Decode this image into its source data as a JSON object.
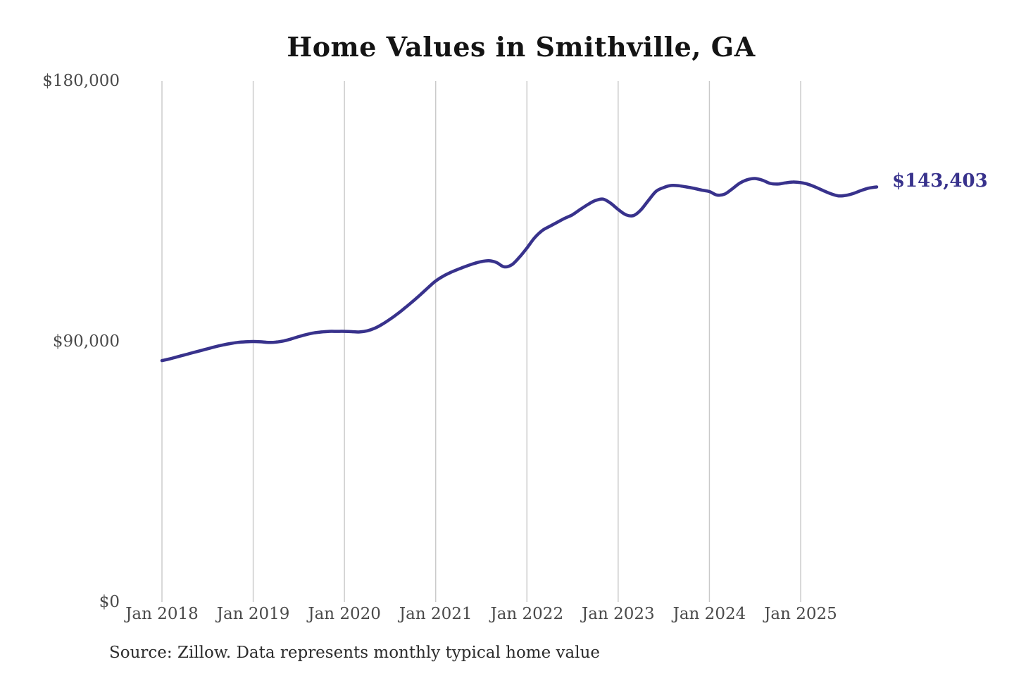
{
  "chart": {
    "title": "Home Values in Smithville, GA",
    "source_note": "Source: Zillow. Data represents monthly typical home value",
    "end_label": "$143,403",
    "colors": {
      "line": "#38328c",
      "end_label": "#38328c",
      "gridline": "#c9c9c9",
      "tick_text": "#4a4a4a",
      "title_text": "#141414",
      "background": "#ffffff"
    }
  },
  "chart_data": {
    "type": "line",
    "title": "Home Values in Smithville, GA",
    "series_name": "Monthly typical home value (ZHVI)",
    "xlabel": "",
    "ylabel": "",
    "grid": "vertical-only",
    "legend_position": "none",
    "ylim": [
      0,
      180000
    ],
    "y_ticks": [
      0,
      90000,
      180000
    ],
    "y_tick_labels": [
      "$0",
      "$90,000",
      "$180,000"
    ],
    "x_tick_labels": [
      "Jan 2018",
      "Jan 2019",
      "Jan 2020",
      "Jan 2021",
      "Jan 2022",
      "Jan 2023",
      "Jan 2024",
      "Jan 2025"
    ],
    "x_ticks_every_n_months": 12,
    "end_annotation": {
      "text": "$143,403",
      "value": 143403
    },
    "x": [
      "2018-01",
      "2018-02",
      "2018-03",
      "2018-04",
      "2018-05",
      "2018-06",
      "2018-07",
      "2018-08",
      "2018-09",
      "2018-10",
      "2018-11",
      "2018-12",
      "2019-01",
      "2019-02",
      "2019-03",
      "2019-04",
      "2019-05",
      "2019-06",
      "2019-07",
      "2019-08",
      "2019-09",
      "2019-10",
      "2019-11",
      "2019-12",
      "2020-01",
      "2020-02",
      "2020-03",
      "2020-04",
      "2020-05",
      "2020-06",
      "2020-07",
      "2020-08",
      "2020-09",
      "2020-10",
      "2020-11",
      "2020-12",
      "2021-01",
      "2021-02",
      "2021-03",
      "2021-04",
      "2021-05",
      "2021-06",
      "2021-07",
      "2021-08",
      "2021-09",
      "2021-10",
      "2021-11",
      "2021-12",
      "2022-01",
      "2022-02",
      "2022-03",
      "2022-04",
      "2022-05",
      "2022-06",
      "2022-07",
      "2022-08",
      "2022-09",
      "2022-10",
      "2022-11",
      "2022-12",
      "2023-01",
      "2023-02",
      "2023-03",
      "2023-04",
      "2023-05",
      "2023-06",
      "2023-07",
      "2023-08",
      "2023-09",
      "2023-10",
      "2023-11",
      "2023-12",
      "2024-01",
      "2024-02",
      "2024-03",
      "2024-04",
      "2024-05",
      "2024-06",
      "2024-07",
      "2024-08",
      "2024-09",
      "2024-10",
      "2024-11",
      "2024-12",
      "2025-01",
      "2025-02",
      "2025-03",
      "2025-04",
      "2025-05",
      "2025-06",
      "2025-07",
      "2025-08",
      "2025-09",
      "2025-10",
      "2025-11"
    ],
    "values": [
      83400,
      84000,
      84700,
      85400,
      86100,
      86800,
      87500,
      88200,
      88800,
      89300,
      89700,
      89900,
      90000,
      89900,
      89700,
      89800,
      90200,
      90900,
      91700,
      92400,
      93000,
      93300,
      93500,
      93500,
      93500,
      93400,
      93300,
      93700,
      94600,
      96000,
      97700,
      99600,
      101700,
      103900,
      106200,
      108600,
      110900,
      112600,
      113900,
      115000,
      116000,
      116900,
      117600,
      117900,
      117300,
      115800,
      116500,
      119100,
      122300,
      125800,
      128300,
      129800,
      131200,
      132600,
      133800,
      135600,
      137300,
      138700,
      139200,
      137800,
      135600,
      133800,
      133500,
      135500,
      138800,
      141900,
      143200,
      143900,
      143800,
      143400,
      142900,
      142300,
      141800,
      140600,
      140900,
      142700,
      144700,
      145900,
      146300,
      145700,
      144600,
      144400,
      144800,
      145100,
      144900,
      144300,
      143300,
      142100,
      141000,
      140300,
      140500,
      141200,
      142200,
      143000,
      143403
    ]
  }
}
